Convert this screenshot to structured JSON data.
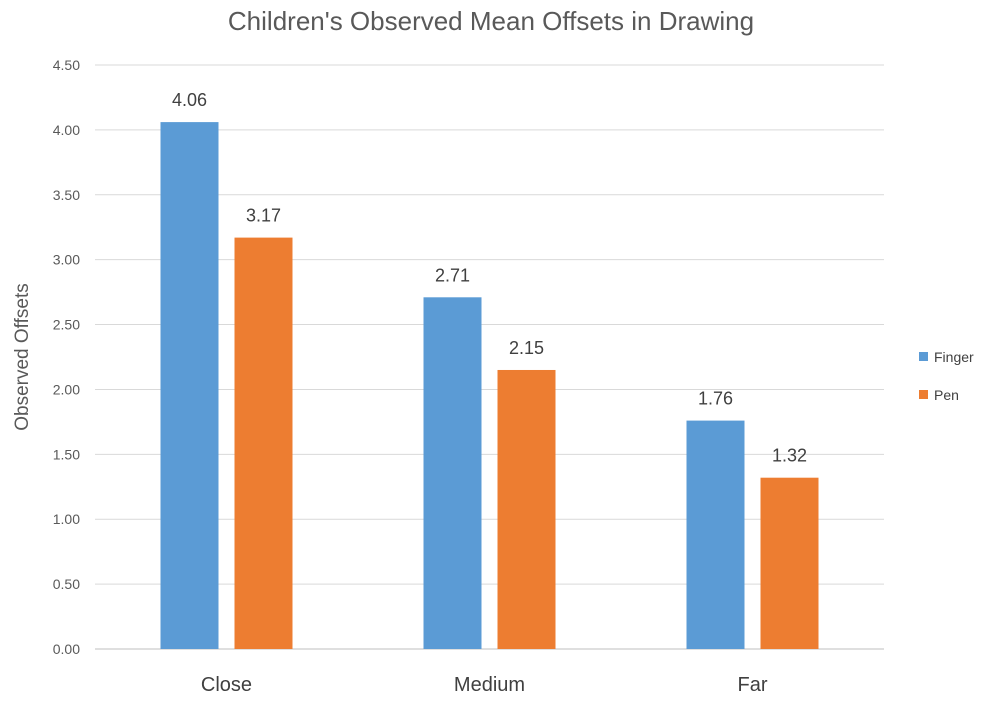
{
  "chart_data": {
    "type": "bar",
    "title": "Children's Observed Mean Offsets in Drawing",
    "xlabel": "",
    "ylabel": "Observed Offsets",
    "categories": [
      "Close",
      "Medium",
      "Far"
    ],
    "series": [
      {
        "name": "Finger",
        "values": [
          4.06,
          2.71,
          1.76
        ],
        "color": "#5b9bd5"
      },
      {
        "name": "Pen",
        "values": [
          3.17,
          2.15,
          1.32
        ],
        "color": "#ed7d31"
      }
    ],
    "ylim": [
      0,
      4.5
    ],
    "yticks": [
      "0.00",
      "0.50",
      "1.00",
      "1.50",
      "2.00",
      "2.50",
      "3.00",
      "3.50",
      "4.00",
      "4.50"
    ],
    "data_labels": [
      [
        "4.06",
        "2.71",
        "1.76"
      ],
      [
        "3.17",
        "2.15",
        "1.32"
      ]
    ],
    "grid": true,
    "legend_position": "right"
  }
}
